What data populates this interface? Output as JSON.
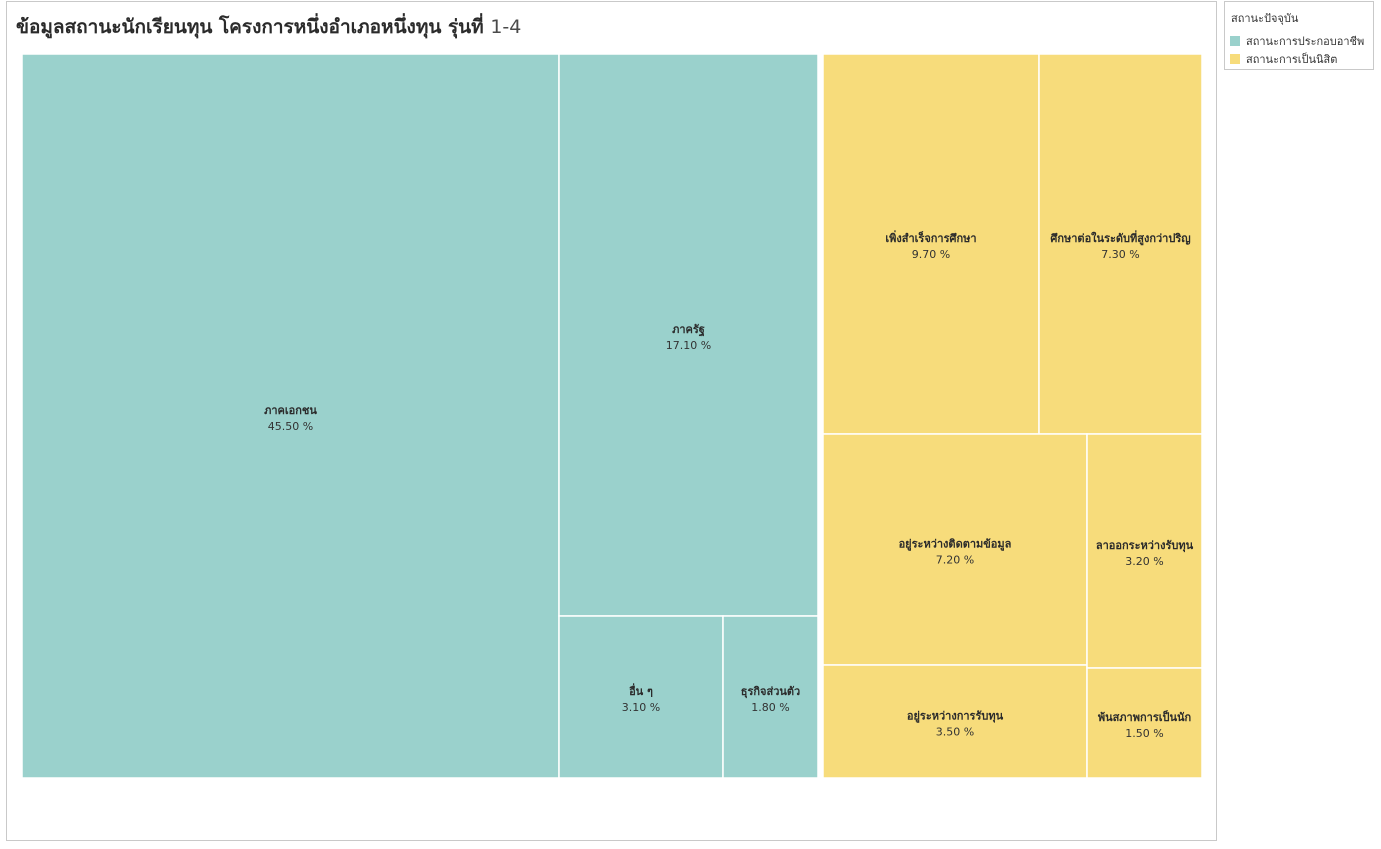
{
  "chart_data": {
    "type": "treemap",
    "title": "ข้อมูลสถานะนักเรียนทุน โครงการหนึ่งอำเภอหนึ่งทุน รุ่นที่",
    "title_suffix": "1-4",
    "legend": {
      "title": "สถานะปัจจุบัน",
      "placement": "top-right",
      "items": [
        {
          "label": "สถานะการประกอบอาชีพ",
          "color": "#9ad1cc"
        },
        {
          "label": "สถานะการเป็นนิสิต",
          "color": "#f7dc7b"
        }
      ]
    },
    "groups": [
      {
        "name": "สถานะการประกอบอาชีพ",
        "color": "#9ad1cc",
        "items": [
          {
            "label": "ภาคเอกชน",
            "value": 45.5,
            "value_text": "45.50 %"
          },
          {
            "label": "ภาครัฐ",
            "value": 17.1,
            "value_text": "17.10 %"
          },
          {
            "label": "อื่น ๆ",
            "value": 3.1,
            "value_text": "3.10 %"
          },
          {
            "label": "ธุรกิจส่วนตัว",
            "value": 1.8,
            "value_text": "1.80 %"
          }
        ]
      },
      {
        "name": "สถานะการเป็นนิสิต",
        "color": "#f7dc7b",
        "items": [
          {
            "label": "เพิ่งสำเร็จการศึกษา",
            "value": 9.7,
            "value_text": "9.70 %"
          },
          {
            "label": "ศึกษาต่อในระดับที่สูงกว่าปริญ",
            "value": 7.3,
            "value_text": "7.30 %"
          },
          {
            "label": "อยู่ระหว่างติดตามข้อมูล",
            "value": 7.2,
            "value_text": "7.20 %"
          },
          {
            "label": "อยู่ระหว่างการรับทุน",
            "value": 3.5,
            "value_text": "3.50 %"
          },
          {
            "label": "ลาออกระหว่างรับทุน",
            "value": 3.2,
            "value_text": "3.20 %"
          },
          {
            "label": "พ้นสภาพการเป็นนัก",
            "value": 1.5,
            "value_text": "1.50 %"
          }
        ]
      }
    ]
  }
}
